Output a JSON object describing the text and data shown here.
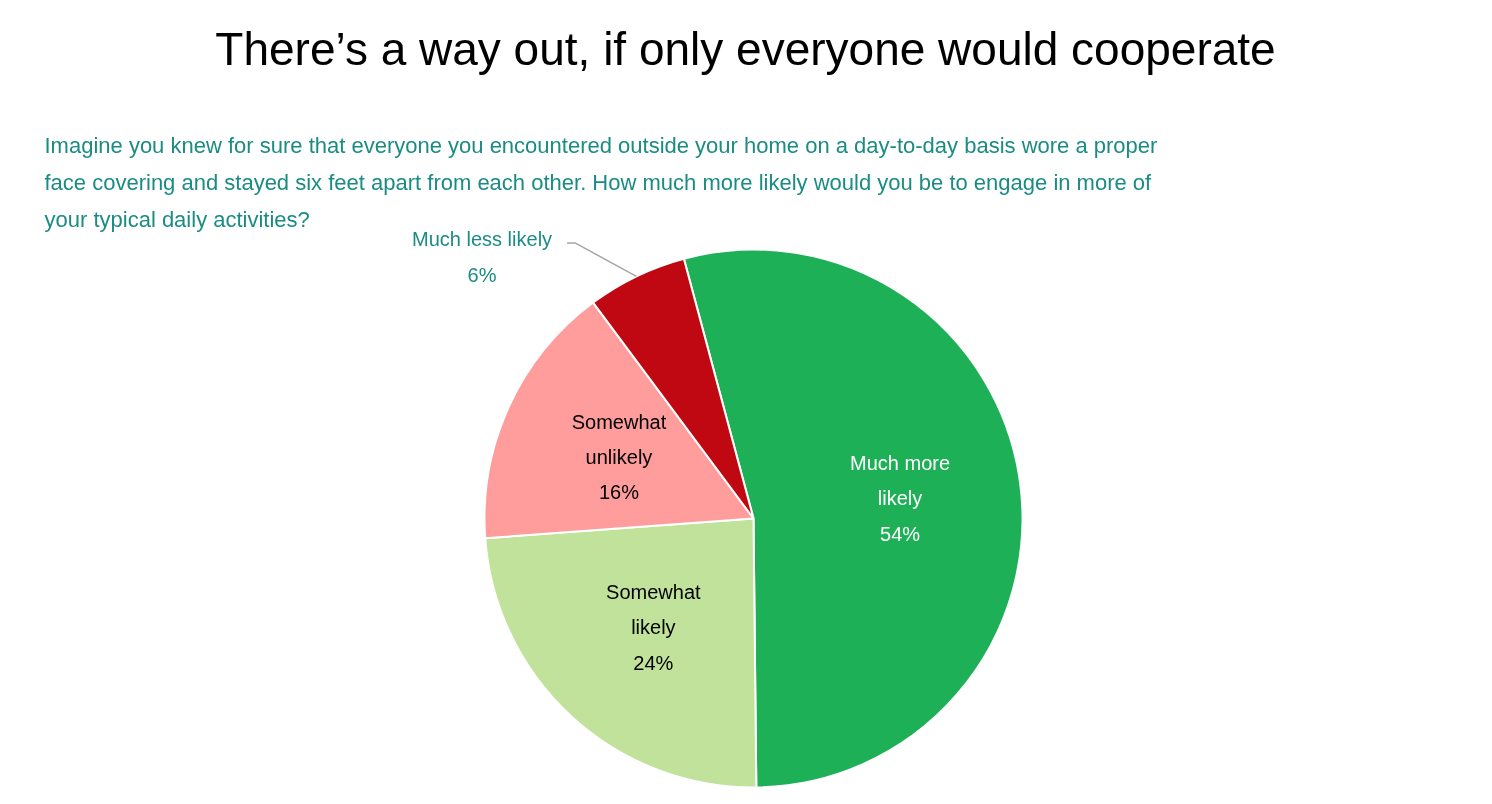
{
  "chart_data": {
    "type": "pie",
    "title": "There’s a way out, if only everyone would cooperate",
    "subtitle": "Imagine you knew for sure that everyone you encountered outside your home on a day-to-day basis wore a proper face covering and stayed six feet apart from each other. How much more likely would you be to engage in more of your typical daily activities?",
    "categories": [
      "Much more likely",
      "Somewhat likely",
      "Somewhat unlikely",
      "Much less likely"
    ],
    "values": [
      54,
      24,
      16,
      6
    ],
    "colors": [
      "#1db056",
      "#c0e29a",
      "#ff9c9c",
      "#c00812"
    ],
    "value_labels": [
      "54%",
      "24%",
      "16%",
      "6%"
    ]
  }
}
